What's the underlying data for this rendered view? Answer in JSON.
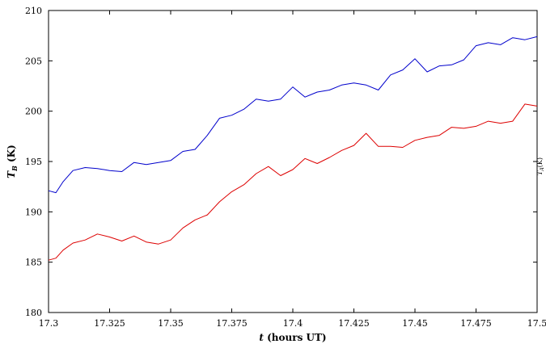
{
  "chart_data": {
    "type": "line",
    "title": "",
    "xlabel": "t (hours UT)",
    "xlabel_italic": "t",
    "xlabel_rest": " (hours UT)",
    "ylabel": "T_B (K)",
    "ylabel_main": "T",
    "ylabel_sub": "B",
    "ylabel_rest": " (K)",
    "y2label": "T_A(K)",
    "y2label_main": "T",
    "y2label_sub": "A",
    "y2label_rest": "(K)",
    "xlim": [
      17.3,
      17.5
    ],
    "ylim": [
      180,
      210
    ],
    "xticks": [
      17.3,
      17.325,
      17.35,
      17.375,
      17.4,
      17.425,
      17.45,
      17.475,
      17.5
    ],
    "xtick_labels": [
      "17.3",
      "17.325",
      "17.35",
      "17.375",
      "17.4",
      "17.425",
      "17.45",
      "17.475",
      "17.5"
    ],
    "yticks": [
      180,
      185,
      190,
      195,
      200,
      205,
      210
    ],
    "ytick_labels": [
      "180",
      "185",
      "190",
      "195",
      "200",
      "205",
      "210"
    ],
    "grid": false,
    "series": [
      {
        "color": "#0000cc",
        "x": [
          17.3,
          17.303,
          17.306,
          17.31,
          17.315,
          17.32,
          17.325,
          17.33,
          17.335,
          17.34,
          17.345,
          17.35,
          17.355,
          17.36,
          17.365,
          17.37,
          17.375,
          17.38,
          17.385,
          17.39,
          17.395,
          17.4,
          17.405,
          17.41,
          17.415,
          17.42,
          17.425,
          17.43,
          17.435,
          17.44,
          17.445,
          17.45,
          17.455,
          17.46,
          17.465,
          17.47,
          17.475,
          17.48,
          17.485,
          17.49,
          17.495,
          17.5
        ],
        "y": [
          192.1,
          191.9,
          193.0,
          194.1,
          194.4,
          194.3,
          194.1,
          194.0,
          194.9,
          194.7,
          194.9,
          195.1,
          196.0,
          196.2,
          197.6,
          199.3,
          199.6,
          200.2,
          201.2,
          201.0,
          201.2,
          202.4,
          201.4,
          201.9,
          202.1,
          202.6,
          202.8,
          202.6,
          202.1,
          203.6,
          204.1,
          205.2,
          203.9,
          204.5,
          204.6,
          205.1,
          206.5,
          206.8,
          206.6,
          207.3,
          207.1,
          207.4
        ]
      },
      {
        "color": "#dd0000",
        "x": [
          17.3,
          17.303,
          17.306,
          17.31,
          17.315,
          17.32,
          17.325,
          17.33,
          17.335,
          17.34,
          17.345,
          17.35,
          17.355,
          17.36,
          17.365,
          17.37,
          17.375,
          17.38,
          17.385,
          17.39,
          17.395,
          17.4,
          17.405,
          17.41,
          17.415,
          17.42,
          17.425,
          17.43,
          17.435,
          17.44,
          17.445,
          17.45,
          17.455,
          17.46,
          17.465,
          17.47,
          17.475,
          17.48,
          17.485,
          17.49,
          17.495,
          17.5
        ],
        "y": [
          185.2,
          185.4,
          186.2,
          186.9,
          187.2,
          187.8,
          187.5,
          187.1,
          187.6,
          187.0,
          186.8,
          187.2,
          188.4,
          189.2,
          189.7,
          191.0,
          192.0,
          192.7,
          193.8,
          194.5,
          193.6,
          194.2,
          195.3,
          194.8,
          195.4,
          196.1,
          196.6,
          197.8,
          196.5,
          196.5,
          196.4,
          197.1,
          197.4,
          197.6,
          198.4,
          198.3,
          198.5,
          199.0,
          198.8,
          199.0,
          200.7,
          200.5
        ]
      }
    ]
  }
}
